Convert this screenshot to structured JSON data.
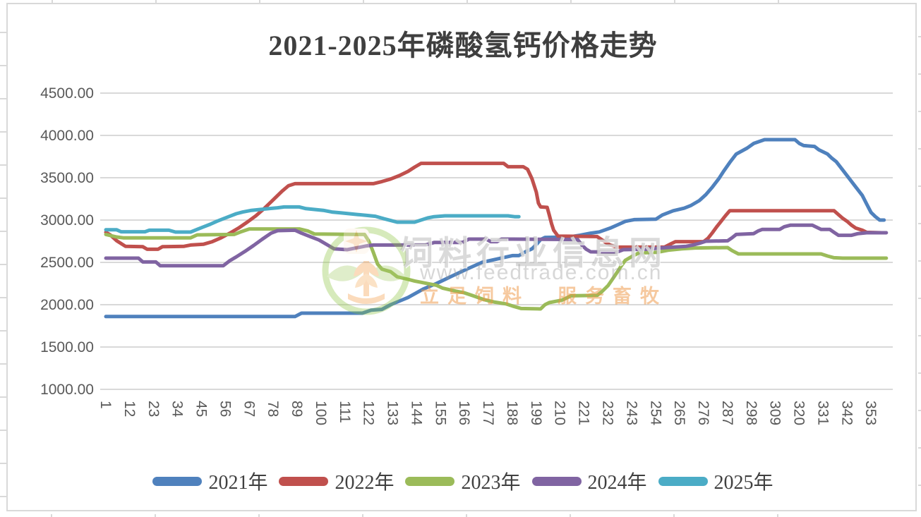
{
  "chart_data": {
    "type": "line",
    "title": "2021-2025年磷酸氢钙价格走势",
    "xlabel": "",
    "ylabel": "",
    "x_range": [
      1,
      363
    ],
    "ylim": [
      1000,
      4500
    ],
    "y_tick_step": 500,
    "y_ticks": [
      "4500.00",
      "4000.00",
      "3500.00",
      "3000.00",
      "2500.00",
      "2000.00",
      "1500.00",
      "1000.00"
    ],
    "x_ticks": [
      "1",
      "12",
      "23",
      "34",
      "45",
      "56",
      "67",
      "78",
      "89",
      "100",
      "111",
      "122",
      "133",
      "144",
      "155",
      "166",
      "177",
      "188",
      "199",
      "210",
      "221",
      "232",
      "243",
      "254",
      "265",
      "276",
      "287",
      "298",
      "309",
      "320",
      "331",
      "342",
      "353"
    ],
    "x_tick_interval": 11,
    "grid": true,
    "gridline_color": "#d9d9d9",
    "axis_label_color": "#595959",
    "title_color": "#3f3f3f",
    "legend_position": "bottom",
    "series": [
      {
        "name": "2021年",
        "color": "#4F81BD",
        "points": [
          [
            1,
            1860
          ],
          [
            88,
            1860
          ],
          [
            91,
            1900
          ],
          [
            119,
            1900
          ],
          [
            123,
            1935
          ],
          [
            128,
            1945
          ],
          [
            132,
            2000
          ],
          [
            140,
            2085
          ],
          [
            147,
            2185
          ],
          [
            153,
            2250
          ],
          [
            160,
            2335
          ],
          [
            167,
            2420
          ],
          [
            174,
            2500
          ],
          [
            181,
            2540
          ],
          [
            188,
            2580
          ],
          [
            191,
            2580
          ],
          [
            194,
            2625
          ],
          [
            197,
            2660
          ],
          [
            199,
            2710
          ],
          [
            201,
            2770
          ],
          [
            203,
            2795
          ],
          [
            214,
            2800
          ],
          [
            219,
            2820
          ],
          [
            224,
            2845
          ],
          [
            228,
            2860
          ],
          [
            233,
            2905
          ],
          [
            237,
            2950
          ],
          [
            240,
            2985
          ],
          [
            244,
            3005
          ],
          [
            254,
            3010
          ],
          [
            257,
            3060
          ],
          [
            262,
            3110
          ],
          [
            267,
            3140
          ],
          [
            270,
            3170
          ],
          [
            274,
            3230
          ],
          [
            277,
            3300
          ],
          [
            280,
            3390
          ],
          [
            283,
            3490
          ],
          [
            285,
            3570
          ],
          [
            288,
            3680
          ],
          [
            291,
            3780
          ],
          [
            296,
            3850
          ],
          [
            299,
            3905
          ],
          [
            304,
            3950
          ],
          [
            318,
            3950
          ],
          [
            320,
            3905
          ],
          [
            322,
            3880
          ],
          [
            327,
            3870
          ],
          [
            329,
            3830
          ],
          [
            333,
            3780
          ],
          [
            335,
            3730
          ],
          [
            337,
            3690
          ],
          [
            340,
            3590
          ],
          [
            343,
            3490
          ],
          [
            346,
            3390
          ],
          [
            349,
            3290
          ],
          [
            351,
            3190
          ],
          [
            353,
            3090
          ],
          [
            355,
            3040
          ],
          [
            357,
            3000
          ],
          [
            359,
            3000
          ]
        ]
      },
      {
        "name": "2022年",
        "color": "#C0504D",
        "points": [
          [
            1,
            2855
          ],
          [
            3,
            2825
          ],
          [
            6,
            2755
          ],
          [
            10,
            2690
          ],
          [
            18,
            2685
          ],
          [
            20,
            2655
          ],
          [
            25,
            2655
          ],
          [
            27,
            2685
          ],
          [
            37,
            2690
          ],
          [
            40,
            2705
          ],
          [
            46,
            2715
          ],
          [
            50,
            2745
          ],
          [
            54,
            2790
          ],
          [
            58,
            2845
          ],
          [
            62,
            2905
          ],
          [
            66,
            2975
          ],
          [
            70,
            3050
          ],
          [
            74,
            3140
          ],
          [
            78,
            3240
          ],
          [
            82,
            3340
          ],
          [
            85,
            3405
          ],
          [
            88,
            3430
          ],
          [
            124,
            3430
          ],
          [
            128,
            3455
          ],
          [
            132,
            3485
          ],
          [
            136,
            3525
          ],
          [
            140,
            3575
          ],
          [
            143,
            3625
          ],
          [
            146,
            3670
          ],
          [
            184,
            3670
          ],
          [
            186,
            3630
          ],
          [
            193,
            3630
          ],
          [
            195,
            3600
          ],
          [
            197,
            3490
          ],
          [
            199,
            3330
          ],
          [
            200,
            3200
          ],
          [
            201,
            3155
          ],
          [
            204,
            3150
          ],
          [
            205,
            3060
          ],
          [
            206,
            2960
          ],
          [
            207,
            2880
          ],
          [
            209,
            2810
          ],
          [
            227,
            2805
          ],
          [
            229,
            2770
          ],
          [
            231,
            2735
          ],
          [
            233,
            2705
          ],
          [
            236,
            2680
          ],
          [
            258,
            2680
          ],
          [
            261,
            2720
          ],
          [
            263,
            2745
          ],
          [
            276,
            2745
          ],
          [
            278,
            2785
          ],
          [
            280,
            2850
          ],
          [
            282,
            2920
          ],
          [
            284,
            2985
          ],
          [
            286,
            3050
          ],
          [
            288,
            3110
          ],
          [
            336,
            3110
          ],
          [
            338,
            3065
          ],
          [
            340,
            3020
          ],
          [
            342,
            2985
          ],
          [
            344,
            2940
          ],
          [
            346,
            2905
          ],
          [
            349,
            2880
          ],
          [
            351,
            2855
          ],
          [
            358,
            2850
          ]
        ]
      },
      {
        "name": "2023年",
        "color": "#9BBB59",
        "points": [
          [
            1,
            2830
          ],
          [
            6,
            2800
          ],
          [
            9,
            2790
          ],
          [
            40,
            2790
          ],
          [
            43,
            2825
          ],
          [
            60,
            2830
          ],
          [
            63,
            2860
          ],
          [
            67,
            2895
          ],
          [
            90,
            2895
          ],
          [
            94,
            2870
          ],
          [
            97,
            2835
          ],
          [
            120,
            2830
          ],
          [
            122,
            2750
          ],
          [
            124,
            2620
          ],
          [
            126,
            2480
          ],
          [
            128,
            2420
          ],
          [
            132,
            2390
          ],
          [
            135,
            2330
          ],
          [
            140,
            2300
          ],
          [
            143,
            2280
          ],
          [
            148,
            2255
          ],
          [
            153,
            2230
          ],
          [
            156,
            2195
          ],
          [
            162,
            2160
          ],
          [
            166,
            2140
          ],
          [
            170,
            2105
          ],
          [
            175,
            2060
          ],
          [
            180,
            2030
          ],
          [
            185,
            2010
          ],
          [
            188,
            1985
          ],
          [
            192,
            1955
          ],
          [
            201,
            1950
          ],
          [
            203,
            2000
          ],
          [
            205,
            2025
          ],
          [
            211,
            2055
          ],
          [
            215,
            2105
          ],
          [
            227,
            2110
          ],
          [
            229,
            2150
          ],
          [
            232,
            2225
          ],
          [
            234,
            2300
          ],
          [
            236,
            2375
          ],
          [
            238,
            2455
          ],
          [
            240,
            2525
          ],
          [
            243,
            2570
          ],
          [
            246,
            2610
          ],
          [
            255,
            2620
          ],
          [
            260,
            2645
          ],
          [
            266,
            2660
          ],
          [
            272,
            2670
          ],
          [
            287,
            2675
          ],
          [
            289,
            2640
          ],
          [
            292,
            2600
          ],
          [
            330,
            2600
          ],
          [
            333,
            2575
          ],
          [
            336,
            2555
          ],
          [
            340,
            2550
          ],
          [
            360,
            2550
          ]
        ]
      },
      {
        "name": "2024年",
        "color": "#8064A2",
        "points": [
          [
            1,
            2550
          ],
          [
            16,
            2550
          ],
          [
            18,
            2505
          ],
          [
            24,
            2505
          ],
          [
            26,
            2460
          ],
          [
            55,
            2460
          ],
          [
            58,
            2520
          ],
          [
            61,
            2565
          ],
          [
            65,
            2630
          ],
          [
            69,
            2700
          ],
          [
            73,
            2775
          ],
          [
            77,
            2845
          ],
          [
            80,
            2875
          ],
          [
            88,
            2880
          ],
          [
            91,
            2845
          ],
          [
            95,
            2805
          ],
          [
            99,
            2765
          ],
          [
            103,
            2705
          ],
          [
            106,
            2660
          ],
          [
            112,
            2650
          ],
          [
            116,
            2670
          ],
          [
            121,
            2695
          ],
          [
            124,
            2705
          ],
          [
            148,
            2705
          ],
          [
            152,
            2735
          ],
          [
            165,
            2735
          ],
          [
            168,
            2775
          ],
          [
            176,
            2775
          ],
          [
            178,
            2745
          ],
          [
            181,
            2745
          ],
          [
            183,
            2775
          ],
          [
            188,
            2775
          ],
          [
            218,
            2770
          ],
          [
            220,
            2705
          ],
          [
            222,
            2655
          ],
          [
            224,
            2625
          ],
          [
            236,
            2620
          ],
          [
            239,
            2650
          ],
          [
            250,
            2655
          ],
          [
            256,
            2670
          ],
          [
            262,
            2680
          ],
          [
            268,
            2690
          ],
          [
            271,
            2705
          ],
          [
            274,
            2725
          ],
          [
            277,
            2750
          ],
          [
            287,
            2755
          ],
          [
            289,
            2790
          ],
          [
            291,
            2830
          ],
          [
            299,
            2840
          ],
          [
            301,
            2870
          ],
          [
            303,
            2890
          ],
          [
            311,
            2890
          ],
          [
            313,
            2920
          ],
          [
            316,
            2940
          ],
          [
            326,
            2940
          ],
          [
            328,
            2915
          ],
          [
            330,
            2890
          ],
          [
            334,
            2890
          ],
          [
            336,
            2855
          ],
          [
            338,
            2820
          ],
          [
            344,
            2820
          ],
          [
            347,
            2840
          ],
          [
            351,
            2850
          ],
          [
            360,
            2850
          ]
        ]
      },
      {
        "name": "2025年",
        "color": "#4BACC6",
        "points": [
          [
            1,
            2885
          ],
          [
            6,
            2885
          ],
          [
            8,
            2862
          ],
          [
            19,
            2862
          ],
          [
            21,
            2880
          ],
          [
            30,
            2880
          ],
          [
            33,
            2858
          ],
          [
            40,
            2858
          ],
          [
            43,
            2890
          ],
          [
            46,
            2920
          ],
          [
            49,
            2950
          ],
          [
            52,
            2985
          ],
          [
            55,
            3015
          ],
          [
            58,
            3045
          ],
          [
            61,
            3075
          ],
          [
            64,
            3095
          ],
          [
            68,
            3115
          ],
          [
            72,
            3125
          ],
          [
            76,
            3135
          ],
          [
            80,
            3145
          ],
          [
            83,
            3155
          ],
          [
            90,
            3155
          ],
          [
            93,
            3135
          ],
          [
            97,
            3125
          ],
          [
            101,
            3115
          ],
          [
            105,
            3095
          ],
          [
            109,
            3085
          ],
          [
            113,
            3075
          ],
          [
            117,
            3065
          ],
          [
            121,
            3055
          ],
          [
            125,
            3045
          ],
          [
            129,
            3015
          ],
          [
            132,
            2995
          ],
          [
            135,
            2975
          ],
          [
            143,
            2975
          ],
          [
            146,
            3000
          ],
          [
            149,
            3025
          ],
          [
            152,
            3040
          ],
          [
            157,
            3050
          ],
          [
            186,
            3050
          ],
          [
            189,
            3040
          ],
          [
            191,
            3040
          ]
        ]
      }
    ]
  },
  "watermark": {
    "site_name": "饲料行业信息网",
    "url": "www.feedtrade.com.cn",
    "slogan": "立足饲料　服务畜牧"
  }
}
